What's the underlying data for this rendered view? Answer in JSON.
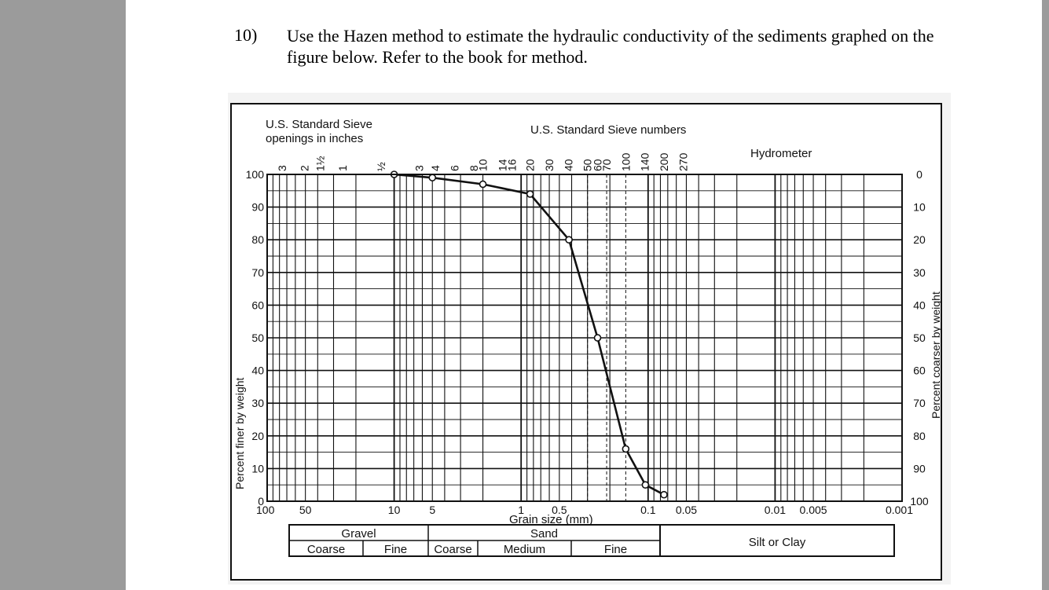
{
  "question": {
    "number": "10)",
    "text": "Use the Hazen method to estimate the hydraulic conductivity of the sediments graphed on the figure below. Refer to the book for method."
  },
  "figure": {
    "top_left_label": [
      "U.S. Standard Sieve",
      "openings in inches"
    ],
    "top_center_label": "U.S. Standard Sieve numbers",
    "hydrometer_label": "Hydrometer",
    "left_axis_label": "Percent finer by weight",
    "right_axis_label": "Percent coarser by weight",
    "x_axis_label": "Grain size (mm)",
    "inch_sieves": [
      "3",
      "2",
      "1½",
      "1",
      "½"
    ],
    "sieve_numbers": [
      "3",
      "4",
      "6",
      "8",
      "10",
      "14",
      "16",
      "20",
      "30",
      "40",
      "50",
      "60",
      "70",
      "100",
      "140",
      "200",
      "270"
    ],
    "classification": {
      "gravel": "Gravel",
      "sand": "Sand",
      "silt_clay": "Silt or Clay",
      "coarse": "Coarse",
      "fine": "Fine",
      "sand_coarse": "Coarse",
      "medium": "Medium",
      "sand_fine": "Fine"
    }
  },
  "chart_data": {
    "type": "line",
    "x_scale": "log",
    "x_reversed": true,
    "xlabel": "Grain size (mm)",
    "ylabel": "Percent finer by weight",
    "ylabel_right": "Percent coarser by weight",
    "xlim": [
      100,
      0.001
    ],
    "ylim": [
      0,
      100
    ],
    "x_tick_labels": [
      "100",
      "50",
      "10",
      "5",
      "1",
      "0.5",
      "0.1",
      "0.05",
      "0.01",
      "0.005",
      "0.001"
    ],
    "x_tick_values": [
      100,
      50,
      10,
      5,
      1,
      0.5,
      0.1,
      0.05,
      0.01,
      0.005,
      0.001
    ],
    "y_left_ticks": [
      "0",
      "10",
      "20",
      "30",
      "40",
      "50",
      "60",
      "70",
      "80",
      "90",
      "100"
    ],
    "y_right_ticks": [
      "100",
      "90",
      "80",
      "70",
      "60",
      "50",
      "40",
      "30",
      "20",
      "10",
      "0"
    ],
    "grid": true,
    "series": [
      {
        "points": [
          {
            "x": 10,
            "y": 100
          },
          {
            "x": 5,
            "y": 99
          },
          {
            "x": 2,
            "y": 97
          },
          {
            "x": 0.85,
            "y": 94
          },
          {
            "x": 0.42,
            "y": 80
          },
          {
            "x": 0.25,
            "y": 50
          },
          {
            "x": 0.15,
            "y": 16
          },
          {
            "x": 0.105,
            "y": 5
          },
          {
            "x": 0.075,
            "y": 2
          }
        ]
      }
    ]
  }
}
